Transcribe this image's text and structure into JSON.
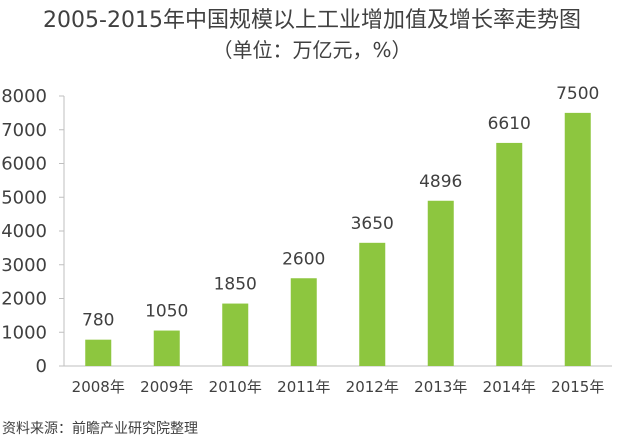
{
  "chart_data": {
    "type": "bar",
    "title": "2005-2015年中国规模以上工业增加值及增长率走势图",
    "subtitle": "（单位：万亿元，%）",
    "categories": [
      "2008年",
      "2009年",
      "2010年",
      "2011年",
      "2012年",
      "2013年",
      "2014年",
      "2015年"
    ],
    "values": [
      780,
      1050,
      1850,
      2600,
      3650,
      4896,
      6610,
      7500
    ],
    "ylim": [
      0,
      8000
    ],
    "yticks": [
      0,
      1000,
      2000,
      3000,
      4000,
      5000,
      6000,
      7000,
      8000
    ],
    "xlabel": "",
    "ylabel": "",
    "grid": false,
    "bar_color": "#8DC63F",
    "data_labels": true
  },
  "source_text": "资料来源：前瞻产业研究院整理"
}
